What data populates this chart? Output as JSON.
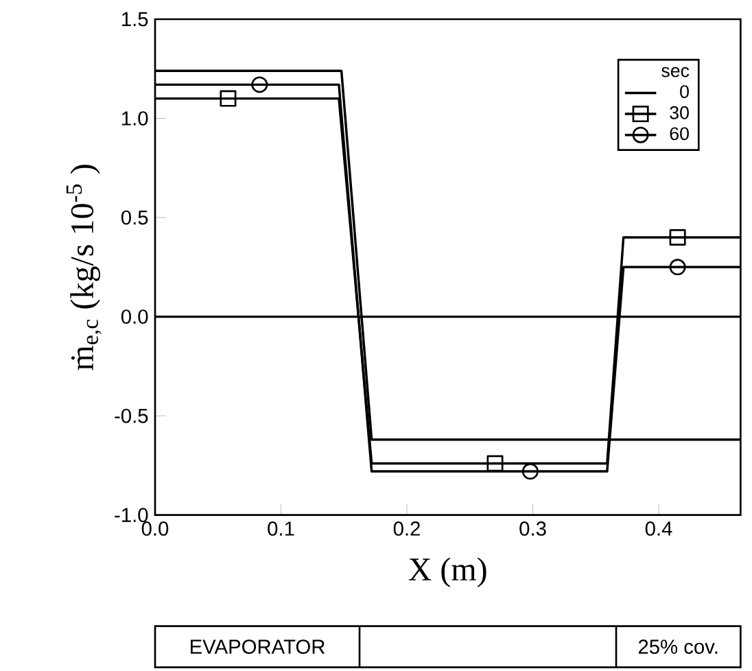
{
  "chart_data": {
    "type": "line",
    "xlabel": "X    (m)",
    "ylabel": "ṁ$_{e,c}$   (kg/s   10$^{-5}$ )",
    "legend_title": "sec",
    "legend": "top right",
    "xlim": [
      0,
      0.465
    ],
    "ylim": [
      -1.0,
      1.5
    ],
    "xticks": [
      {
        "value": 0,
        "label": "0.0"
      },
      {
        "value": 0.1,
        "label": "0.1"
      },
      {
        "value": 0.2,
        "label": "0.2"
      },
      {
        "value": 0.3,
        "label": "0.3"
      },
      {
        "value": 0.4,
        "label": "0.4"
      }
    ],
    "yticks": [
      {
        "value": -1.0,
        "label": "-1.0"
      },
      {
        "value": -0.5,
        "label": "-0.5"
      },
      {
        "value": 0,
        "label": "0.0"
      },
      {
        "value": 0.5,
        "label": "0.5"
      },
      {
        "value": 1.0,
        "label": "1.0"
      },
      {
        "value": 1.5,
        "label": "1.5"
      }
    ],
    "ref_lines": [
      {
        "axis": "y",
        "value": 0,
        "color": "#000000"
      }
    ],
    "series": [
      {
        "name": "0",
        "color": "#000000",
        "x": [
          0,
          0.148,
          0.172,
          0.465
        ],
        "values": [
          1.24,
          1.24,
          -0.62,
          -0.62
        ]
      },
      {
        "name": "30",
        "color": "#000000",
        "x": [
          0,
          0.146,
          0.172,
          0.359,
          0.372,
          0.465
        ],
        "values": [
          1.1,
          1.1,
          -0.74,
          -0.74,
          0.4,
          0.4
        ]
      },
      {
        "type": "scatter",
        "color": "#000000",
        "marker": "square",
        "x": [
          0.058,
          0.27,
          0.415
        ],
        "values": [
          1.1,
          -0.74,
          0.4
        ]
      },
      {
        "name": "60",
        "color": "#000000",
        "x": [
          0,
          0.146,
          0.172,
          0.359,
          0.372,
          0.465
        ],
        "values": [
          1.17,
          1.17,
          -0.78,
          -0.78,
          0.25,
          0.25
        ]
      },
      {
        "type": "scatter",
        "color": "#000000",
        "marker": "circle",
        "x": [
          0.083,
          0.298,
          0.415
        ],
        "values": [
          1.17,
          -0.78,
          0.25
        ]
      }
    ],
    "annotations": [
      "EVAPORATOR",
      "25% cov."
    ]
  }
}
